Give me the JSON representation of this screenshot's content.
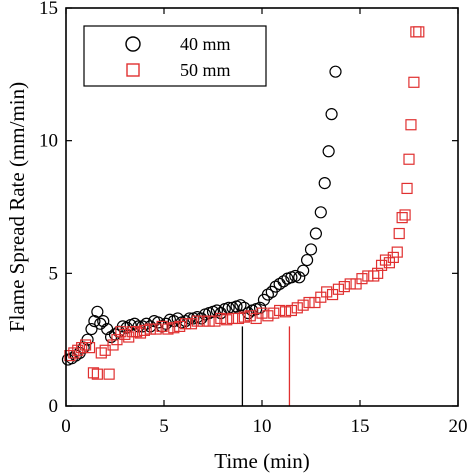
{
  "chart_data": {
    "type": "scatter",
    "title": "",
    "xlabel": "Time (min)",
    "ylabel": "Flame Spread Rate (mm/min)",
    "xlim": [
      0,
      20
    ],
    "ylim": [
      0,
      15
    ],
    "xticks": [
      "0",
      "5",
      "10",
      "15",
      "20"
    ],
    "yticks": [
      "0",
      "5",
      "10",
      "15"
    ],
    "grid": false,
    "legend_position": "top-left",
    "series": [
      {
        "name": "40 mm",
        "color": "#000000",
        "marker": "circle",
        "x": [
          0.1,
          0.3,
          0.5,
          0.7,
          0.9,
          1.1,
          1.3,
          1.45,
          1.6,
          1.75,
          1.9,
          2.1,
          2.3,
          2.5,
          2.7,
          2.9,
          3.1,
          3.3,
          3.5,
          3.7,
          3.9,
          4.1,
          4.3,
          4.5,
          4.7,
          4.9,
          5.1,
          5.3,
          5.5,
          5.7,
          5.9,
          6.1,
          6.3,
          6.5,
          6.7,
          6.9,
          7.1,
          7.3,
          7.5,
          7.7,
          7.9,
          8.1,
          8.3,
          8.5,
          8.7,
          8.9,
          9.1,
          9.3,
          9.5,
          9.7,
          9.9,
          10.1,
          10.3,
          10.5,
          10.7,
          10.9,
          11.1,
          11.3,
          11.5,
          11.7,
          11.9,
          12.1,
          12.3,
          12.5,
          12.75,
          13.0,
          13.2,
          13.4,
          13.55,
          13.75
        ],
        "y": [
          1.75,
          1.8,
          1.9,
          2.0,
          2.2,
          2.5,
          2.9,
          3.2,
          3.55,
          3.1,
          3.2,
          2.9,
          2.6,
          2.7,
          2.8,
          3.0,
          2.95,
          3.05,
          3.1,
          3.0,
          3.0,
          3.1,
          3.0,
          3.2,
          3.15,
          3.0,
          3.1,
          3.25,
          3.2,
          3.3,
          3.15,
          3.2,
          3.3,
          3.3,
          3.35,
          3.3,
          3.45,
          3.5,
          3.55,
          3.6,
          3.5,
          3.65,
          3.7,
          3.7,
          3.75,
          3.8,
          3.7,
          3.5,
          3.6,
          3.65,
          3.7,
          4.0,
          4.2,
          4.3,
          4.5,
          4.6,
          4.7,
          4.8,
          4.85,
          4.9,
          4.85,
          5.1,
          5.5,
          5.9,
          6.5,
          7.3,
          8.4,
          9.6,
          11.0,
          12.6
        ]
      },
      {
        "name": "50 mm",
        "color": "#e03030",
        "marker": "square",
        "x": [
          0.2,
          0.4,
          0.6,
          0.8,
          1.0,
          1.2,
          1.4,
          1.6,
          1.8,
          2.0,
          2.2,
          2.4,
          2.6,
          2.8,
          3.0,
          3.2,
          3.4,
          3.6,
          3.8,
          4.0,
          4.3,
          4.6,
          4.9,
          5.2,
          5.5,
          5.8,
          6.1,
          6.4,
          6.7,
          7.0,
          7.3,
          7.6,
          7.9,
          8.2,
          8.5,
          8.8,
          9.1,
          9.4,
          9.7,
          10.0,
          10.3,
          10.6,
          10.9,
          11.2,
          11.5,
          11.8,
          12.1,
          12.4,
          12.7,
          13.0,
          13.3,
          13.6,
          13.9,
          14.2,
          14.5,
          14.8,
          15.1,
          15.4,
          15.7,
          15.9,
          16.1,
          16.3,
          16.5,
          16.7,
          16.9,
          17.0,
          17.15,
          17.3,
          17.4,
          17.5,
          17.6,
          17.75,
          17.85,
          18.0
        ],
        "y": [
          1.9,
          2.0,
          2.1,
          2.2,
          2.3,
          2.2,
          1.25,
          1.2,
          2.0,
          2.1,
          1.2,
          2.3,
          2.5,
          2.8,
          2.7,
          2.6,
          2.8,
          2.8,
          2.75,
          2.85,
          2.9,
          2.9,
          3.0,
          2.9,
          2.95,
          3.0,
          3.1,
          3.1,
          3.2,
          3.2,
          3.2,
          3.2,
          3.3,
          3.25,
          3.3,
          3.3,
          3.35,
          3.4,
          3.3,
          3.5,
          3.4,
          3.5,
          3.6,
          3.55,
          3.6,
          3.7,
          3.8,
          3.9,
          3.9,
          4.1,
          4.3,
          4.2,
          4.4,
          4.5,
          4.6,
          4.6,
          4.8,
          4.9,
          4.9,
          5.0,
          5.3,
          5.5,
          5.4,
          5.6,
          5.8,
          6.5,
          7.1,
          7.2,
          8.2,
          9.3,
          10.6,
          12.2,
          14.1,
          14.1
        ]
      }
    ],
    "vertical_markers": [
      {
        "series": "40 mm",
        "x": 9.0,
        "y_top": 3.0,
        "color": "#000000"
      },
      {
        "series": "50 mm",
        "x": 11.4,
        "y_top": 3.0,
        "color": "#e03030"
      }
    ]
  }
}
